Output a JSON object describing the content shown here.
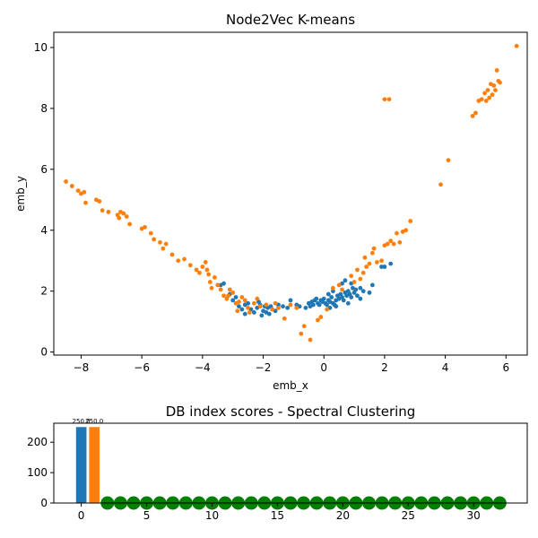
{
  "chart_data": [
    {
      "type": "scatter",
      "title": "Node2Vec K-means",
      "xlabel": "emb_x",
      "ylabel": "emb_y",
      "xlim": [
        -8.9,
        6.7
      ],
      "ylim": [
        -0.1,
        10.5
      ],
      "x_ticks": [
        -8,
        -6,
        -4,
        -2,
        0,
        2,
        4,
        6
      ],
      "y_ticks": [
        0,
        2,
        4,
        6,
        8,
        10
      ],
      "grid": false,
      "legend": "none",
      "series": [
        {
          "color": "#1f77b4",
          "points": [
            [
              -3.4,
              2.2
            ],
            [
              -3.3,
              2.25
            ],
            [
              -3.1,
              1.9
            ],
            [
              -3.0,
              1.7
            ],
            [
              -2.9,
              1.8
            ],
            [
              -2.8,
              1.5
            ],
            [
              -2.7,
              1.4
            ],
            [
              -2.6,
              1.55
            ],
            [
              -2.5,
              1.6
            ],
            [
              -2.4,
              1.4
            ],
            [
              -2.3,
              1.3
            ],
            [
              -2.2,
              1.45
            ],
            [
              -2.15,
              1.65
            ],
            [
              -2.1,
              1.55
            ],
            [
              -2.0,
              1.35
            ],
            [
              -1.95,
              1.5
            ],
            [
              -1.9,
              1.3
            ],
            [
              -1.85,
              1.45
            ],
            [
              -1.8,
              1.25
            ],
            [
              -1.75,
              1.5
            ],
            [
              -1.7,
              1.4
            ],
            [
              -1.6,
              1.35
            ],
            [
              -1.5,
              1.55
            ],
            [
              -1.35,
              1.5
            ],
            [
              -1.2,
              1.45
            ],
            [
              -1.1,
              1.7
            ],
            [
              -0.9,
              1.55
            ],
            [
              -0.8,
              1.5
            ],
            [
              -0.6,
              1.45
            ],
            [
              -0.5,
              1.6
            ],
            [
              -0.4,
              1.65
            ],
            [
              -0.35,
              1.55
            ],
            [
              -0.3,
              1.7
            ],
            [
              -0.25,
              1.75
            ],
            [
              -0.2,
              1.6
            ],
            [
              -0.15,
              1.55
            ],
            [
              -0.1,
              1.7
            ],
            [
              -0.05,
              1.65
            ],
            [
              0.0,
              1.75
            ],
            [
              0.05,
              1.6
            ],
            [
              0.1,
              1.55
            ],
            [
              0.15,
              1.7
            ],
            [
              0.2,
              1.65
            ],
            [
              0.25,
              1.8
            ],
            [
              0.3,
              1.6
            ],
            [
              0.35,
              1.55
            ],
            [
              0.4,
              1.7
            ],
            [
              0.45,
              1.85
            ],
            [
              0.5,
              1.75
            ],
            [
              0.55,
              1.9
            ],
            [
              0.6,
              1.8
            ],
            [
              0.65,
              1.7
            ],
            [
              0.7,
              1.95
            ],
            [
              0.75,
              1.85
            ],
            [
              0.8,
              2.0
            ],
            [
              0.85,
              1.9
            ],
            [
              0.9,
              1.8
            ],
            [
              0.95,
              2.1
            ],
            [
              1.0,
              1.95
            ],
            [
              1.05,
              2.05
            ],
            [
              1.1,
              1.85
            ],
            [
              1.2,
              2.1
            ],
            [
              1.3,
              2.0
            ],
            [
              1.5,
              1.95
            ],
            [
              1.6,
              2.2
            ],
            [
              0.2,
              1.45
            ],
            [
              0.4,
              1.5
            ],
            [
              -0.45,
              1.5
            ],
            [
              0.6,
              2.25
            ],
            [
              0.7,
              2.35
            ],
            [
              1.2,
              1.75
            ],
            [
              0.3,
              2.0
            ],
            [
              0.8,
              1.6
            ],
            [
              1.9,
              2.8
            ],
            [
              2.0,
              2.8
            ],
            [
              2.2,
              2.9
            ],
            [
              -2.6,
              1.25
            ],
            [
              -2.05,
              1.2
            ],
            [
              0.9,
              2.25
            ],
            [
              0.15,
              1.9
            ]
          ]
        },
        {
          "color": "#ff7f0e",
          "points": [
            [
              -8.5,
              5.6
            ],
            [
              -8.3,
              5.45
            ],
            [
              -8.1,
              5.3
            ],
            [
              -8.0,
              5.2
            ],
            [
              -7.9,
              5.25
            ],
            [
              -7.85,
              4.9
            ],
            [
              -7.5,
              5.0
            ],
            [
              -7.4,
              4.95
            ],
            [
              -7.3,
              4.65
            ],
            [
              -7.1,
              4.6
            ],
            [
              -6.8,
              4.5
            ],
            [
              -6.7,
              4.6
            ],
            [
              -6.75,
              4.4
            ],
            [
              -6.6,
              4.55
            ],
            [
              -6.5,
              4.45
            ],
            [
              -6.4,
              4.2
            ],
            [
              -6.0,
              4.05
            ],
            [
              -5.9,
              4.1
            ],
            [
              -5.7,
              3.9
            ],
            [
              -5.6,
              3.7
            ],
            [
              -5.4,
              3.6
            ],
            [
              -5.3,
              3.4
            ],
            [
              -5.2,
              3.55
            ],
            [
              -5.0,
              3.2
            ],
            [
              -4.8,
              3.0
            ],
            [
              -4.6,
              3.05
            ],
            [
              -4.4,
              2.85
            ],
            [
              -4.2,
              2.7
            ],
            [
              -4.1,
              2.6
            ],
            [
              -4.0,
              2.8
            ],
            [
              -3.9,
              2.95
            ],
            [
              -3.85,
              2.7
            ],
            [
              -3.8,
              2.55
            ],
            [
              -3.75,
              2.3
            ],
            [
              -3.7,
              2.1
            ],
            [
              -3.6,
              2.45
            ],
            [
              -3.5,
              2.2
            ],
            [
              -3.4,
              2.05
            ],
            [
              -3.3,
              1.85
            ],
            [
              -3.2,
              1.75
            ],
            [
              -3.1,
              2.05
            ],
            [
              -3.0,
              1.95
            ],
            [
              -2.9,
              1.6
            ],
            [
              -2.85,
              1.35
            ],
            [
              -2.8,
              1.65
            ],
            [
              -2.7,
              1.8
            ],
            [
              -2.6,
              1.7
            ],
            [
              -2.5,
              1.45
            ],
            [
              -2.3,
              1.6
            ],
            [
              -2.2,
              1.75
            ],
            [
              -2.1,
              1.5
            ],
            [
              -1.9,
              1.55
            ],
            [
              -1.7,
              1.4
            ],
            [
              -1.6,
              1.6
            ],
            [
              -1.5,
              1.45
            ],
            [
              -1.3,
              1.1
            ],
            [
              -1.1,
              1.55
            ],
            [
              -0.9,
              1.45
            ],
            [
              -0.75,
              0.6
            ],
            [
              -0.65,
              0.85
            ],
            [
              -0.45,
              0.4
            ],
            [
              -0.2,
              1.05
            ],
            [
              -0.1,
              1.15
            ],
            [
              0.1,
              1.4
            ],
            [
              0.3,
              2.1
            ],
            [
              0.5,
              2.2
            ],
            [
              0.9,
              2.5
            ],
            [
              1.1,
              2.7
            ],
            [
              1.2,
              2.4
            ],
            [
              1.3,
              2.6
            ],
            [
              1.35,
              3.1
            ],
            [
              1.4,
              2.8
            ],
            [
              1.5,
              2.9
            ],
            [
              1.6,
              3.25
            ],
            [
              1.65,
              3.4
            ],
            [
              1.75,
              2.95
            ],
            [
              1.9,
              3.0
            ],
            [
              2.0,
              3.5
            ],
            [
              2.1,
              3.55
            ],
            [
              2.2,
              3.65
            ],
            [
              2.3,
              3.55
            ],
            [
              2.4,
              3.9
            ],
            [
              2.5,
              3.6
            ],
            [
              2.6,
              3.95
            ],
            [
              2.7,
              4.0
            ],
            [
              2.85,
              4.3
            ],
            [
              2.0,
              8.3
            ],
            [
              2.15,
              8.3
            ],
            [
              3.85,
              5.5
            ],
            [
              4.1,
              6.3
            ],
            [
              4.9,
              7.75
            ],
            [
              5.0,
              7.85
            ],
            [
              5.1,
              8.25
            ],
            [
              5.2,
              8.3
            ],
            [
              5.3,
              8.5
            ],
            [
              5.35,
              8.25
            ],
            [
              5.4,
              8.6
            ],
            [
              5.45,
              8.35
            ],
            [
              5.5,
              8.8
            ],
            [
              5.55,
              8.45
            ],
            [
              5.6,
              8.75
            ],
            [
              5.65,
              8.6
            ],
            [
              5.7,
              9.25
            ],
            [
              5.75,
              8.9
            ],
            [
              5.8,
              8.85
            ],
            [
              6.35,
              10.05
            ],
            [
              -3.15,
              1.85
            ],
            [
              0.6,
              2.05
            ],
            [
              1.0,
              2.3
            ],
            [
              -2.45,
              1.3
            ]
          ]
        }
      ]
    },
    {
      "type": "bar",
      "title": "DB index scores - Spectral Clustering",
      "xlim": [
        -2.1,
        34.1
      ],
      "ylim": [
        0,
        262.5
      ],
      "x_ticks": [
        0,
        5,
        10,
        15,
        20,
        25,
        30
      ],
      "y_ticks": [
        0,
        100,
        200
      ],
      "grid": false,
      "legend": "none",
      "bars": [
        {
          "x": 0,
          "value": 250.0,
          "label": "250.0",
          "color": "#1f77b4"
        },
        {
          "x": 1,
          "value": 250.0,
          "label": "250.0",
          "color": "#ff7f0e"
        }
      ],
      "markers": {
        "color": "#008000",
        "x": [
          2,
          3,
          4,
          5,
          6,
          7,
          8,
          9,
          10,
          11,
          12,
          13,
          14,
          15,
          16,
          17,
          18,
          19,
          20,
          21,
          22,
          23,
          24,
          25,
          26,
          27,
          28,
          29,
          30,
          31,
          32
        ],
        "y": 0
      }
    }
  ]
}
